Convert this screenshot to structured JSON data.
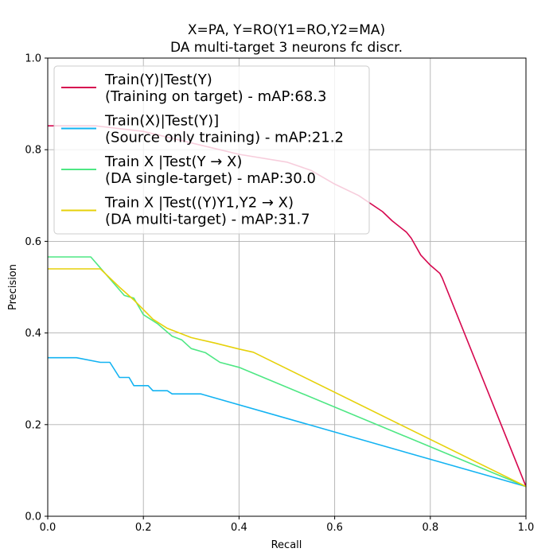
{
  "chart_data": {
    "type": "line",
    "title": [
      "X=PA, Y=RO(Y1=RO,Y2=MA)",
      "DA multi-target 3 neurons fc discr."
    ],
    "xlabel": "Recall",
    "ylabel": "Precision",
    "xlim": [
      0,
      1
    ],
    "ylim": [
      0,
      1
    ],
    "xticks": [
      "0.0",
      "0.2",
      "0.4",
      "0.6",
      "0.8",
      "1.0"
    ],
    "yticks": [
      "0.0",
      "0.2",
      "0.4",
      "0.6",
      "0.8",
      "1.0"
    ],
    "grid": true,
    "legend_position": "top-left",
    "series": [
      {
        "name": [
          "Train(Y)|Test(Y)",
          "(Training on target) - mAP:68.3"
        ],
        "color": "#d6084f",
        "x": [
          0.0,
          0.1,
          0.2,
          0.3,
          0.4,
          0.5,
          0.55,
          0.6,
          0.65,
          0.7,
          0.72,
          0.75,
          0.76,
          0.78,
          0.8,
          0.82,
          0.825,
          1.0
        ],
        "y": [
          0.852,
          0.852,
          0.84,
          0.815,
          0.79,
          0.773,
          0.755,
          0.725,
          0.7,
          0.665,
          0.645,
          0.62,
          0.607,
          0.57,
          0.548,
          0.53,
          0.52,
          0.065
        ]
      },
      {
        "name": [
          "Train(X)|Test(Y)]",
          "(Source only training) - mAP:21.2"
        ],
        "color": "#13b3f2",
        "x": [
          0.0,
          0.06,
          0.11,
          0.13,
          0.15,
          0.17,
          0.18,
          0.21,
          0.22,
          0.25,
          0.26,
          0.32,
          1.0
        ],
        "y": [
          0.346,
          0.346,
          0.336,
          0.336,
          0.303,
          0.303,
          0.285,
          0.285,
          0.274,
          0.274,
          0.267,
          0.267,
          0.065
        ]
      },
      {
        "name": [
          "Train X |Test(Y → X)",
          "(DA single-target) - mAP:30.0"
        ],
        "color": "#4ee784",
        "x": [
          0.0,
          0.09,
          0.16,
          0.18,
          0.2,
          0.23,
          0.26,
          0.28,
          0.3,
          0.33,
          0.36,
          0.4,
          1.0
        ],
        "y": [
          0.566,
          0.566,
          0.482,
          0.476,
          0.44,
          0.42,
          0.393,
          0.385,
          0.366,
          0.357,
          0.336,
          0.325,
          0.065
        ]
      },
      {
        "name": [
          "Train X |Test((Y)Y1,Y2 → X)",
          "(DA multi-target) - mAP:31.7"
        ],
        "color": "#e6d10a",
        "x": [
          0.0,
          0.11,
          0.15,
          0.18,
          0.22,
          0.25,
          0.3,
          0.35,
          0.4,
          0.43,
          1.0
        ],
        "y": [
          0.54,
          0.54,
          0.5,
          0.472,
          0.43,
          0.41,
          0.39,
          0.378,
          0.365,
          0.358,
          0.065
        ]
      }
    ]
  }
}
